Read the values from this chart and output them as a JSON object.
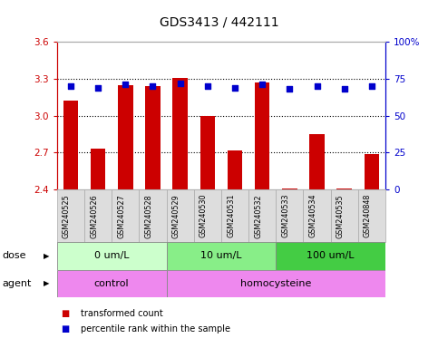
{
  "title": "GDS3413 / 442111",
  "samples": [
    "GSM240525",
    "GSM240526",
    "GSM240527",
    "GSM240528",
    "GSM240529",
    "GSM240530",
    "GSM240531",
    "GSM240532",
    "GSM240533",
    "GSM240534",
    "GSM240535",
    "GSM240848"
  ],
  "transformed_count": [
    3.12,
    2.73,
    3.25,
    3.24,
    3.31,
    3.0,
    2.72,
    3.27,
    2.41,
    2.85,
    2.41,
    2.69
  ],
  "percentile_rank": [
    70,
    69,
    71,
    70,
    72,
    70,
    69,
    71,
    68,
    70,
    68,
    70
  ],
  "bar_color": "#cc0000",
  "dot_color": "#0000cc",
  "ylim_left": [
    2.4,
    3.6
  ],
  "ylim_right": [
    0,
    100
  ],
  "yticks_left": [
    2.4,
    2.7,
    3.0,
    3.3,
    3.6
  ],
  "yticks_right": [
    0,
    25,
    50,
    75,
    100
  ],
  "hline_values": [
    2.7,
    3.0,
    3.3
  ],
  "dose_groups": [
    {
      "label": "0 um/L",
      "start": 0,
      "end": 4,
      "color": "#ccffcc"
    },
    {
      "label": "10 um/L",
      "start": 4,
      "end": 8,
      "color": "#88ee88"
    },
    {
      "label": "100 um/L",
      "start": 8,
      "end": 12,
      "color": "#44cc44"
    }
  ],
  "agent_groups": [
    {
      "label": "control",
      "start": 0,
      "end": 4,
      "color": "#ee88ee"
    },
    {
      "label": "homocysteine",
      "start": 4,
      "end": 12,
      "color": "#ee88ee"
    }
  ],
  "legend_items": [
    {
      "color": "#cc0000",
      "label": "transformed count"
    },
    {
      "color": "#0000cc",
      "label": "percentile rank within the sample"
    }
  ],
  "dose_label": "dose",
  "agent_label": "agent",
  "title_fontsize": 10,
  "tick_fontsize": 7.5,
  "label_fontsize": 8,
  "bar_width": 0.55,
  "dot_size": 22,
  "background_color": "#ffffff",
  "left_tick_color": "#cc0000",
  "right_tick_color": "#0000cc",
  "sample_bg_color": "#dddddd",
  "sample_border_color": "#aaaaaa"
}
